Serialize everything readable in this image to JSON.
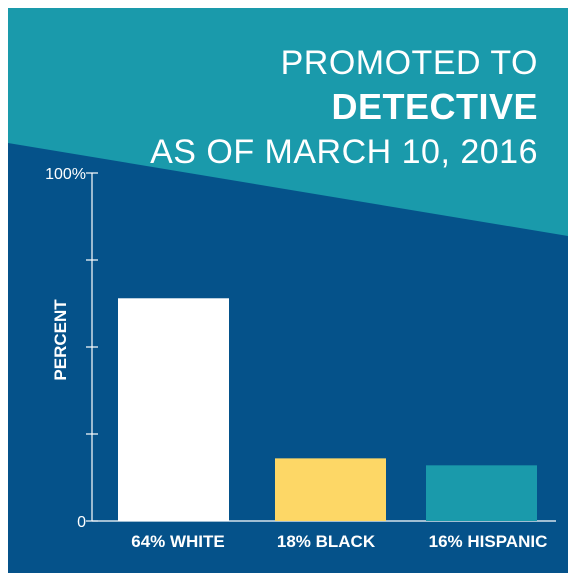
{
  "colors": {
    "teal_background": "#1a9aab",
    "navy_background": "#05528a",
    "text": "#ffffff",
    "axis": "#ffffff"
  },
  "title": {
    "line1": "PROMOTED TO",
    "line2": "DETECTIVE",
    "line3": "AS OF MARCH 10, 2016"
  },
  "chart_data": {
    "type": "bar",
    "categories": [
      "WHITE",
      "BLACK",
      "HISPANIC"
    ],
    "category_labels": [
      "64% WHITE",
      "18% BLACK",
      "16% HISPANIC"
    ],
    "values": [
      64,
      18,
      16
    ],
    "bar_colors": [
      "#ffffff",
      "#fdd766",
      "#1a9aab"
    ],
    "ylabel": "PERCENT",
    "ylim": [
      0,
      100
    ],
    "yticks": [
      0,
      25,
      50,
      75,
      100
    ],
    "ytick_labels": [
      "0",
      "",
      "",
      "",
      "100%"
    ],
    "grid": false,
    "legend": "none"
  }
}
